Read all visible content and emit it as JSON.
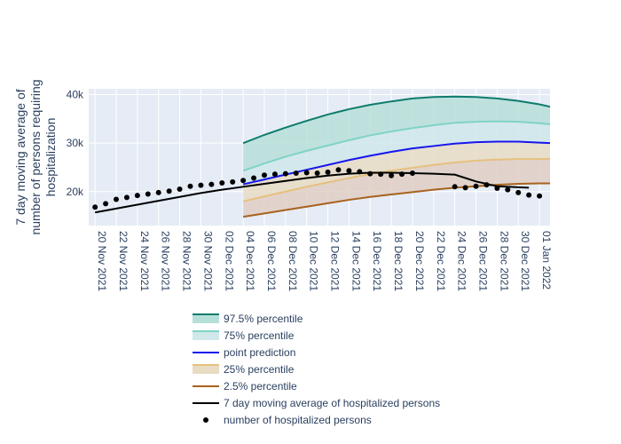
{
  "chart_data": {
    "type": "line",
    "title": "",
    "ylabel": "7 day moving average of number of persons requiring hospitalization",
    "ylabel_lines": [
      "7 day moving average of",
      "number of persons requiring",
      "hospitalization"
    ],
    "xlabel": "",
    "x_tick_labels": [
      "20 Nov 2021",
      "22 Nov 2021",
      "24 Nov 2021",
      "26 Nov 2021",
      "28 Nov 2021",
      "30 Nov 2021",
      "02 Dec 2021",
      "04 Dec 2021",
      "06 Dec 2021",
      "08 Dec 2021",
      "10 Dec 2021",
      "12 Dec 2021",
      "14 Dec 2021",
      "16 Dec 2021",
      "18 Dec 2021",
      "20 Dec 2021",
      "22 Dec 2021",
      "24 Dec 2021",
      "26 Dec 2021",
      "28 Dec 2021",
      "30 Dec 2021",
      "01 Jan 2022"
    ],
    "y_tick_labels": [
      "20k",
      "30k",
      "40k"
    ],
    "y_ticks": [
      20000,
      30000,
      40000
    ],
    "ylim": [
      13000,
      41200
    ],
    "xlim_day_offsets_from_2021_11_20": [
      -0.6,
      43.0
    ],
    "grid": true,
    "legend_placement": "bottom",
    "colors": {
      "plot_bg": "#e5ecf6",
      "p975_line": "#0e7c6b",
      "p975_fill": "#b7dfd9",
      "p75_line": "#7fd3c4",
      "p75_fill": "#d0e8ea",
      "point_prediction": "#1616ee",
      "p25_line": "#e6c07e",
      "p25_fill": "#e8dcc4",
      "p025_line": "#a8621e",
      "p025_fill": "#e0cfc4",
      "moving_average": "#000000",
      "markers": "#000000"
    },
    "series": [
      {
        "name": "97.5% percentile",
        "x": [
          "2021-12-04",
          "2021-12-06",
          "2021-12-08",
          "2021-12-10",
          "2021-12-12",
          "2021-12-14",
          "2021-12-16",
          "2021-12-18",
          "2021-12-20",
          "2021-12-22",
          "2021-12-24",
          "2021-12-26",
          "2021-12-28",
          "2021-12-30",
          "2022-01-01",
          "2022-01-02"
        ],
        "values": [
          30000,
          31700,
          33200,
          34600,
          35900,
          37000,
          37900,
          38600,
          39200,
          39500,
          39600,
          39500,
          39200,
          38700,
          38000,
          37500
        ]
      },
      {
        "name": "75% percentile",
        "x": [
          "2021-12-04",
          "2021-12-06",
          "2021-12-08",
          "2021-12-10",
          "2021-12-12",
          "2021-12-14",
          "2021-12-16",
          "2021-12-18",
          "2021-12-20",
          "2021-12-22",
          "2021-12-24",
          "2021-12-26",
          "2021-12-28",
          "2021-12-30",
          "2022-01-01",
          "2022-01-02"
        ],
        "values": [
          24300,
          25800,
          27200,
          28400,
          29500,
          30600,
          31600,
          32400,
          33100,
          33700,
          34200,
          34400,
          34500,
          34400,
          34100,
          33900
        ]
      },
      {
        "name": "point prediction",
        "x": [
          "2021-12-04",
          "2021-12-06",
          "2021-12-08",
          "2021-12-10",
          "2021-12-12",
          "2021-12-14",
          "2021-12-16",
          "2021-12-18",
          "2021-12-20",
          "2021-12-22",
          "2021-12-24",
          "2021-12-26",
          "2021-12-28",
          "2021-12-30",
          "2022-01-01",
          "2022-01-02"
        ],
        "values": [
          21500,
          22500,
          23500,
          24500,
          25500,
          26500,
          27400,
          28200,
          28900,
          29400,
          29900,
          30200,
          30300,
          30300,
          30100,
          30000
        ]
      },
      {
        "name": "25% percentile",
        "x": [
          "2021-12-04",
          "2021-12-06",
          "2021-12-08",
          "2021-12-10",
          "2021-12-12",
          "2021-12-14",
          "2021-12-16",
          "2021-12-18",
          "2021-12-20",
          "2021-12-22",
          "2021-12-24",
          "2021-12-26",
          "2021-12-28",
          "2021-12-30",
          "2022-01-01",
          "2022-01-02"
        ],
        "values": [
          18000,
          19000,
          20000,
          21000,
          21900,
          22800,
          23600,
          24300,
          24900,
          25500,
          26000,
          26400,
          26600,
          26700,
          26700,
          26700
        ]
      },
      {
        "name": "2.5% percentile",
        "x": [
          "2021-12-04",
          "2021-12-06",
          "2021-12-08",
          "2021-12-10",
          "2021-12-12",
          "2021-12-14",
          "2021-12-16",
          "2021-12-18",
          "2021-12-20",
          "2021-12-22",
          "2021-12-24",
          "2021-12-26",
          "2021-12-28",
          "2021-12-30",
          "2022-01-01",
          "2022-01-02"
        ],
        "values": [
          14800,
          15500,
          16200,
          16900,
          17600,
          18300,
          18900,
          19400,
          19900,
          20400,
          20800,
          21100,
          21400,
          21600,
          21700,
          21700
        ]
      },
      {
        "name": "7 day moving average of hospitalized persons",
        "x": [
          "2021-11-20",
          "2021-11-22",
          "2021-11-24",
          "2021-11-26",
          "2021-11-28",
          "2021-11-30",
          "2021-12-02",
          "2021-12-04",
          "2021-12-06",
          "2021-12-08",
          "2021-12-10",
          "2021-12-12",
          "2021-12-14",
          "2021-12-16",
          "2021-12-18",
          "2021-12-20",
          "2021-12-22",
          "2021-12-24",
          "2021-12-26",
          "2021-12-28",
          "2021-12-30",
          "2021-12-31"
        ],
        "values": [
          15700,
          16500,
          17300,
          18100,
          18900,
          19700,
          20400,
          21000,
          21600,
          22200,
          22800,
          23300,
          23700,
          23900,
          23900,
          23800,
          23700,
          23500,
          22100,
          21100,
          20900,
          20800
        ]
      },
      {
        "name": "number of hospitalized persons",
        "x": [
          "2021-11-20",
          "2021-11-21",
          "2021-11-22",
          "2021-11-23",
          "2021-11-24",
          "2021-11-25",
          "2021-11-26",
          "2021-11-27",
          "2021-11-28",
          "2021-11-29",
          "2021-11-30",
          "2021-12-01",
          "2021-12-02",
          "2021-12-03",
          "2021-12-04",
          "2021-12-05",
          "2021-12-06",
          "2021-12-07",
          "2021-12-08",
          "2021-12-09",
          "2021-12-10",
          "2021-12-11",
          "2021-12-12",
          "2021-12-13",
          "2021-12-14",
          "2021-12-15",
          "2021-12-16",
          "2021-12-17",
          "2021-12-18",
          "2021-12-19",
          "2021-12-20",
          "2021-12-24",
          "2021-12-25",
          "2021-12-26",
          "2021-12-27",
          "2021-12-28",
          "2021-12-29",
          "2021-12-30",
          "2021-12-31",
          "2022-01-01"
        ],
        "values": [
          16800,
          17500,
          18400,
          18800,
          19200,
          19500,
          19800,
          20100,
          20500,
          21100,
          21300,
          21500,
          21800,
          22000,
          22300,
          22800,
          23400,
          23600,
          23700,
          23800,
          23900,
          23800,
          24000,
          24500,
          24300,
          24100,
          23700,
          23600,
          23300,
          23600,
          23800,
          21000,
          20800,
          21100,
          21400,
          20700,
          20400,
          19800,
          19300,
          19100
        ]
      }
    ],
    "bands": [
      {
        "upper": "97.5% percentile",
        "lower": "75% percentile",
        "fill_color_key": "p975_fill"
      },
      {
        "upper": "75% percentile",
        "lower": "point prediction",
        "fill_color_key": "p75_fill"
      },
      {
        "upper": "point prediction",
        "lower": "25% percentile",
        "fill_color_key": "p25_fill"
      },
      {
        "upper": "25% percentile",
        "lower": "2.5% percentile",
        "fill_color_key": "p025_fill"
      }
    ],
    "legend": [
      {
        "label": "97.5% percentile",
        "kind": "band",
        "line_key": "p975_line",
        "fill_key": "p975_fill"
      },
      {
        "label": "75% percentile",
        "kind": "band",
        "line_key": "p75_line",
        "fill_key": "p75_fill"
      },
      {
        "label": "point prediction",
        "kind": "line",
        "line_key": "point_prediction"
      },
      {
        "label": "25% percentile",
        "kind": "band",
        "line_key": "p25_line",
        "fill_key": "p25_fill"
      },
      {
        "label": "2.5% percentile",
        "kind": "line",
        "line_key": "p025_line"
      },
      {
        "label": "7 day moving average of hospitalized persons",
        "kind": "line",
        "line_key": "moving_average"
      },
      {
        "label": "number of hospitalized persons",
        "kind": "marker",
        "line_key": "markers"
      }
    ]
  }
}
